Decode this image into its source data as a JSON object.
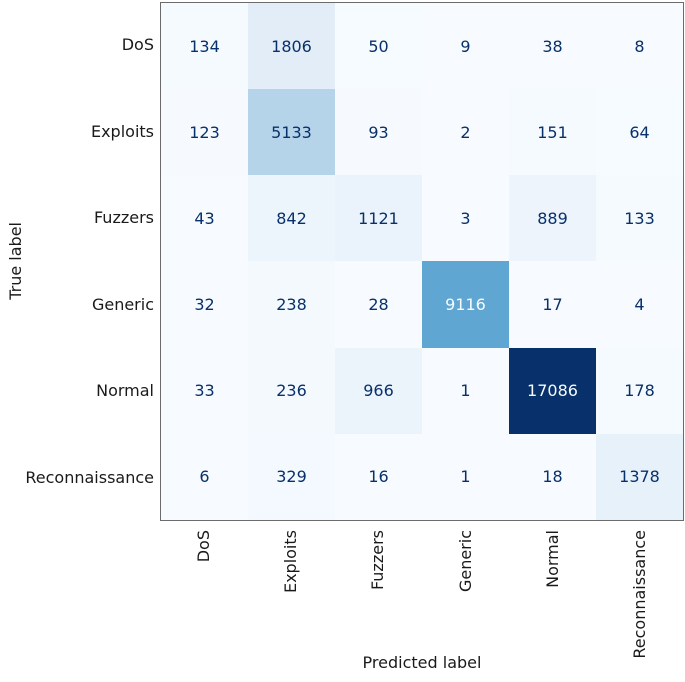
{
  "chart_data": {
    "type": "heatmap",
    "title": "",
    "xlabel": "Predicted label",
    "ylabel": "True label",
    "categories": [
      "DoS",
      "Exploits",
      "Fuzzers",
      "Generic",
      "Normal",
      "Reconnaissance"
    ],
    "matrix": [
      [
        134,
        1806,
        50,
        9,
        38,
        8
      ],
      [
        123,
        5133,
        93,
        2,
        151,
        64
      ],
      [
        43,
        842,
        1121,
        3,
        889,
        133
      ],
      [
        32,
        238,
        28,
        9116,
        17,
        4
      ],
      [
        33,
        236,
        966,
        1,
        17086,
        178
      ],
      [
        6,
        329,
        16,
        1,
        18,
        1378
      ]
    ],
    "vmin": 1,
    "vmax": 17086,
    "colormap": {
      "name": "Blues",
      "stops": [
        "#f7fbff",
        "#deebf7",
        "#c6dbef",
        "#9ecae1",
        "#6baed6",
        "#4292c6",
        "#2171b5",
        "#08519c",
        "#08306b"
      ]
    },
    "cell_text_color_dark": "#08306b",
    "cell_text_color_light": "#f7fbff",
    "axis_text_color": "#1a1a1a",
    "spine_color": "#6b6b6b",
    "grid": false,
    "legend": false
  }
}
